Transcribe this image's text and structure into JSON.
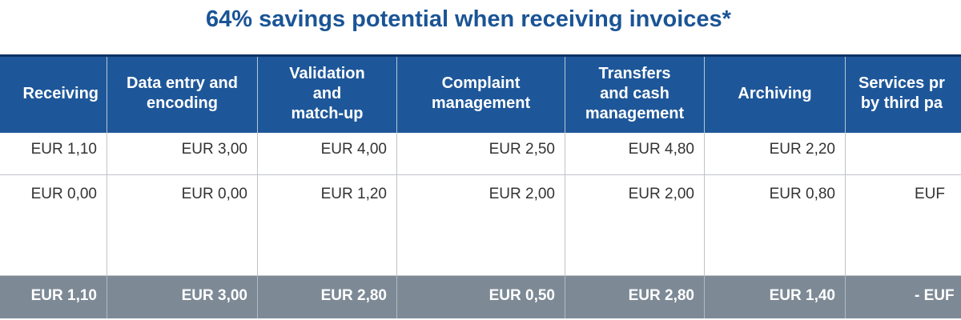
{
  "title": "64% savings potential when receiving invoices*",
  "header": {
    "cols": [
      {
        "lines": [
          "Receiving"
        ]
      },
      {
        "lines": [
          "Data entry and",
          "encoding"
        ]
      },
      {
        "lines": [
          "Validation",
          "and",
          "match-up"
        ]
      },
      {
        "lines": [
          "Complaint",
          "management"
        ]
      },
      {
        "lines": [
          "Transfers",
          "and cash",
          "management"
        ]
      },
      {
        "lines": [
          "Archiving"
        ]
      },
      {
        "lines": [
          "Services pr",
          "by third pa"
        ]
      }
    ]
  },
  "rows": [
    {
      "cells": [
        "EUR 1,10",
        "EUR 3,00",
        "EUR 4,00",
        "EUR 2,50",
        "EUR 4,80",
        "EUR 2,20",
        ""
      ]
    },
    {
      "cells": [
        "EUR 0,00",
        "EUR 0,00",
        "EUR 1,20",
        "EUR 2,00",
        "EUR 2,00",
        "EUR 0,80",
        "EUF"
      ]
    }
  ],
  "totals": {
    "cells": [
      "EUR 1,10",
      "EUR 3,00",
      "EUR 2,80",
      "EUR 0,50",
      "EUR 2,80",
      "EUR 1,40",
      "- EUF"
    ]
  },
  "colors": {
    "title": "#1a5496",
    "header_bg": "#1e5799",
    "header_top_border": "#0d3263",
    "total_bg": "#7d8a96",
    "body_text": "#333333"
  }
}
